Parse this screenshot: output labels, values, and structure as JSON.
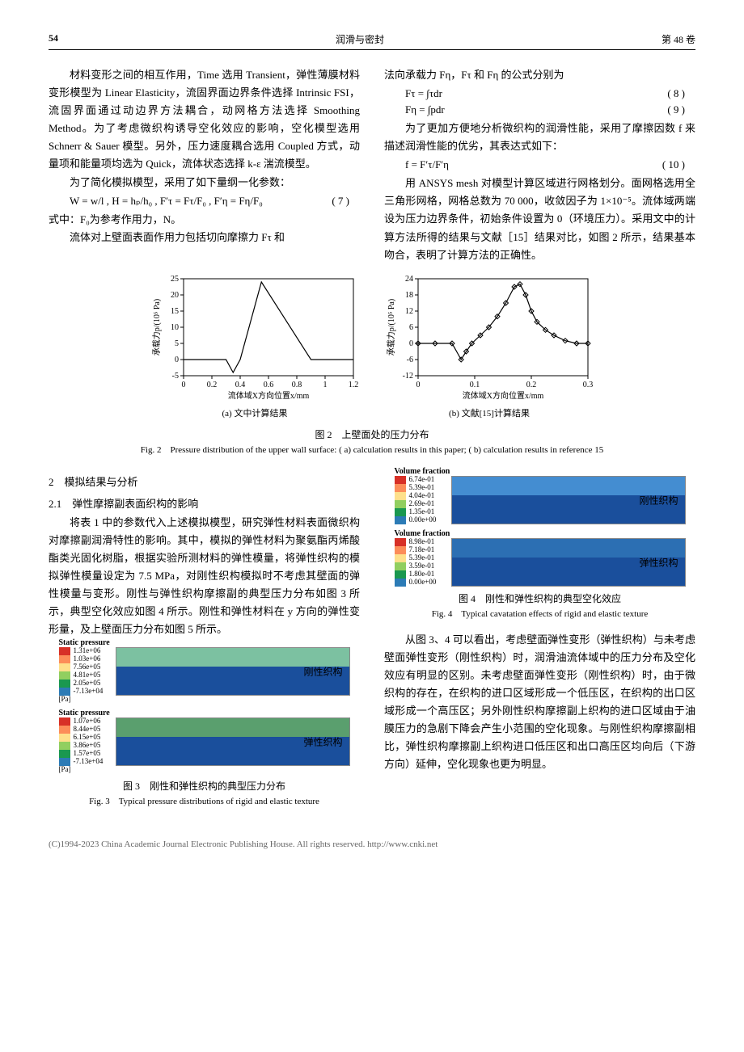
{
  "header": {
    "page": "54",
    "journal": "润滑与密封",
    "vol": "第 48 卷"
  },
  "left_col": {
    "p1": "材料变形之间的相互作用，Time 选用 Transient，弹性薄膜材料变形模型为 Linear Elasticity，流固界面边界条件选择 Intrinsic FSI，流固界面通过动边界方法耦合，动网格方法选择 Smoothing Method。为了考虑微织构诱导空化效应的影响，空化模型选用 Schnerr & Sauer 模型。另外，压力速度耦合选用 Coupled 方式，动量项和能量项均选为 Quick，流体状态选择 k-ε 湍流模型。",
    "p2": "为了简化模拟模型，采用了如下量纲一化参数：",
    "eq7": "W = w/l ,  H = hₚ/h₀ ,  F′τ = Fτ/F₀ ,  F′η = Fη/F₀",
    "eq7_num": "( 7 )",
    "p3": "式中：F₀为参考作用力，N。",
    "p4": "流体对上壁面表面作用力包括切向摩擦力 Fτ 和"
  },
  "right_col": {
    "p1": "法向承载力 Fη，Fτ 和 Fη 的公式分别为",
    "eq8": "Fτ = ∫τdr",
    "eq8_num": "( 8 )",
    "eq9": "Fη = ∫pdr",
    "eq9_num": "( 9 )",
    "p2": "为了更加方便地分析微织构的润滑性能，采用了摩擦因数 f 来描述润滑性能的优劣，其表达式如下：",
    "eq10": "f = F′τ/F′η",
    "eq10_num": "( 10 )",
    "p3": "用 ANSYS mesh 对模型计算区域进行网格划分。面网格选用全三角形网格，网格总数为 70 000，收敛因子为 1×10⁻⁵。流体域两端设为压力边界条件，初始条件设置为 0（环境压力）。采用文中的计算方法所得的结果与文献［15］结果对比，如图 2 所示，结果基本吻合，表明了计算方法的正确性。"
  },
  "fig2": {
    "caption_cn": "图 2　上壁面处的压力分布",
    "caption_en": "Fig. 2　Pressure distribution of the upper wall surface: ( a)  calculation results in this paper; ( b)  calculation results in reference 15",
    "chart_a": {
      "sub": "(a) 文中计算结果",
      "xlabel": "流体域X方向位置x/mm",
      "ylabel": "承载力p/(10⁵ Pa)",
      "xlim": [
        0.0,
        1.2
      ],
      "ylim": [
        -5,
        25
      ],
      "xticks": [
        0.0,
        0.2,
        0.4,
        0.6,
        0.8,
        1.0,
        1.2
      ],
      "yticks": [
        -5,
        0,
        5,
        10,
        15,
        20,
        25
      ],
      "line_color": "#000000",
      "points": [
        [
          0.0,
          0
        ],
        [
          0.3,
          0
        ],
        [
          0.35,
          -4
        ],
        [
          0.4,
          0
        ],
        [
          0.55,
          24
        ],
        [
          0.9,
          0
        ],
        [
          1.2,
          0
        ]
      ]
    },
    "chart_b": {
      "sub": "(b) 文献[15]计算结果",
      "xlabel": "流体域X方向位置x/mm",
      "ylabel": "承载力p/(10⁵ Pa)",
      "xlim": [
        0,
        0.3
      ],
      "ylim": [
        -12,
        24
      ],
      "xticks": [
        0,
        0.1,
        0.2,
        0.3
      ],
      "yticks": [
        -12,
        -6,
        0,
        6,
        12,
        18,
        24
      ],
      "line_color": "#000000",
      "marker": "diamond",
      "points": [
        [
          0,
          0
        ],
        [
          0.03,
          0
        ],
        [
          0.06,
          0
        ],
        [
          0.076,
          -6
        ],
        [
          0.085,
          -3
        ],
        [
          0.095,
          0
        ],
        [
          0.11,
          3
        ],
        [
          0.125,
          6
        ],
        [
          0.14,
          10
        ],
        [
          0.155,
          15
        ],
        [
          0.17,
          21
        ],
        [
          0.18,
          22
        ],
        [
          0.19,
          18
        ],
        [
          0.2,
          12
        ],
        [
          0.21,
          8
        ],
        [
          0.225,
          5
        ],
        [
          0.24,
          3
        ],
        [
          0.26,
          1
        ],
        [
          0.28,
          0
        ],
        [
          0.3,
          0
        ]
      ]
    }
  },
  "sec2": {
    "h": "2　模拟结果与分析",
    "h21": "2.1　弹性摩擦副表面织构的影响",
    "p1": "将表 1 中的参数代入上述模拟模型，研究弹性材料表面微织构对摩擦副润滑特性的影响。其中，模拟的弹性材料为聚氨酯丙烯酸酯类光固化树脂，根据实验所测材料的弹性模量，将弹性织构的模拟弹性模量设定为 7.5 MPa，对刚性织构模拟时不考虑其壁面的弹性模量与变形。刚性与弹性织构摩擦副的典型压力分布如图 3 所示，典型空化效应如图 4 所示。刚性和弹性材料在 y 方向的弹性变形量，及上壁面压力分布如图 5 所示。"
  },
  "fig3": {
    "caption_cn": "图 3　刚性和弹性织构的典型压力分布",
    "caption_en": "Fig. 3　Typical pressure distributions of rigid and elastic texture",
    "block1": {
      "title": "Static pressure",
      "unit": "[Pa]",
      "labels": [
        "1.31e+06",
        "1.03e+06",
        "7.56e+05",
        "4.81e+05",
        "2.05e+05",
        "-7.13e+04"
      ],
      "colors": [
        "#d73027",
        "#fc8d59",
        "#fee08b",
        "#91cf60",
        "#1a9850",
        "#2c7bb6"
      ],
      "img_label": "刚性织构",
      "band_color": "#7cc1a1"
    },
    "block2": {
      "title": "Static pressure",
      "unit": "[Pa]",
      "labels": [
        "1.07e+06",
        "8.44e+05",
        "6.15e+05",
        "3.86e+05",
        "1.57e+05",
        "-7.13e+04"
      ],
      "colors": [
        "#d73027",
        "#fc8d59",
        "#fee08b",
        "#91cf60",
        "#1a9850",
        "#2c7bb6"
      ],
      "img_label": "弹性织构",
      "band_color": "#5a9f6e"
    }
  },
  "fig4": {
    "caption_cn": "图 4　刚性和弹性织构的典型空化效应",
    "caption_en": "Fig. 4　Typical cavatation effects of rigid and elastic texture",
    "block1": {
      "title": "Volume fraction",
      "labels": [
        "6.74e-01",
        "5.39e-01",
        "4.04e-01",
        "2.69e-01",
        "1.35e-01",
        "0.00e+00"
      ],
      "colors": [
        "#d73027",
        "#fc8d59",
        "#fee08b",
        "#91cf60",
        "#1a9850",
        "#2c7bb6"
      ],
      "img_label": "刚性织构",
      "band_color": "#448dd1"
    },
    "block2": {
      "title": "Volume fraction",
      "labels": [
        "8.98e-01",
        "7.18e-01",
        "5.39e-01",
        "3.59e-01",
        "1.80e-01",
        "0.00e+00"
      ],
      "colors": [
        "#d73027",
        "#fc8d59",
        "#fee08b",
        "#91cf60",
        "#1a9850",
        "#2c7bb6"
      ],
      "img_label": "弹性织构",
      "band_color": "#2c6fb3"
    }
  },
  "right_col2": {
    "p1": "从图 3、4 可以看出，考虑壁面弹性变形（弹性织构）与未考虑壁面弹性变形（刚性织构）时，润滑油流体域中的压力分布及空化效应有明显的区别。未考虑壁面弹性变形（刚性织构）时，由于微织构的存在，在织构的进口区域形成一个低压区，在织构的出口区域形成一个高压区；另外刚性织构摩擦副上织构的进口区域由于油膜压力的急剧下降会产生小范围的空化现象。与刚性织构摩擦副相比，弹性织构摩擦副上织构进口低压区和出口高压区均向后（下游方向）延伸，空化现象也更为明显。"
  },
  "footer": "(C)1994-2023 China Academic Journal Electronic Publishing House. All rights reserved.    http://www.cnki.net"
}
